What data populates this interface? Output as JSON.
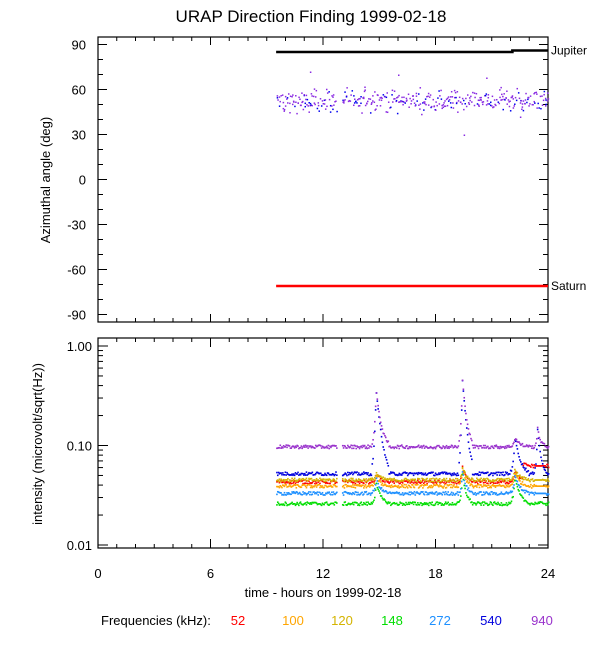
{
  "title": "URAP Direction Finding  1999-02-18",
  "chart_data": [
    {
      "type": "scatter",
      "panel": "direction",
      "ylabel": "Azimuthal angle (deg)",
      "xlim": [
        0,
        24
      ],
      "ylim": [
        -95,
        95
      ],
      "yticks": [
        90,
        60,
        30,
        0,
        -30,
        -60,
        -90
      ],
      "ytick_labels": [
        "90",
        "60",
        "30",
        "0",
        "-30",
        "-60",
        "-90"
      ],
      "reference_lines": [
        {
          "name": "Jupiter",
          "color": "#000000",
          "x": [
            9.5,
            22.1,
            22.1,
            24
          ],
          "y": [
            85,
            85,
            86,
            86
          ]
        },
        {
          "name": "Saturn",
          "color": "#ff0000",
          "x": [
            9.5,
            24
          ],
          "y": [
            -71,
            -71
          ]
        }
      ],
      "scatter": {
        "x_range": [
          9.5,
          24
        ],
        "y_center": 53,
        "y_spread": 8,
        "outliers": [
          {
            "x": 10.2,
            "y": 45
          },
          {
            "x": 11.3,
            "y": 72
          },
          {
            "x": 14.2,
            "y": 62
          },
          {
            "x": 16.0,
            "y": 70
          },
          {
            "x": 19.5,
            "y": 30
          },
          {
            "x": 20.7,
            "y": 68
          },
          {
            "x": 22.5,
            "y": 42
          }
        ],
        "colors": [
          "#8a2be2",
          "#0000ee"
        ]
      }
    },
    {
      "type": "line",
      "panel": "intensity",
      "ylabel": "intensity (microvolt/sqrt(Hz))",
      "xlabel": "time - hours on 1999-02-18",
      "xlim": [
        0,
        24
      ],
      "ylim": [
        0.01,
        1.0
      ],
      "yscale": "log",
      "yticks": [
        1.0,
        0.1,
        0.01
      ],
      "ytick_labels": [
        "1.00",
        "0.10",
        "0.01"
      ],
      "xticks": [
        0,
        6,
        12,
        18,
        24
      ],
      "xtick_labels": [
        "0",
        "6",
        "12",
        "18",
        "24"
      ],
      "data_start": 9.5,
      "gap": [
        12.7,
        13.0
      ],
      "bursts": [
        {
          "x": 14.8,
          "peak": 0.35,
          "width": 0.22
        },
        {
          "x": 19.4,
          "peak": 0.45,
          "width": 0.18
        },
        {
          "x": 22.2,
          "peak": 0.12,
          "width": 0.25
        },
        {
          "x": 23.4,
          "peak": 0.15,
          "width": 0.15
        }
      ],
      "series": [
        {
          "name": "52",
          "color": "#ff0000",
          "values_base": 0.043
        },
        {
          "name": "100",
          "color": "#ffa500",
          "values_base": 0.039
        },
        {
          "name": "120",
          "color": "#d4b400",
          "values_base": 0.045
        },
        {
          "name": "148",
          "color": "#00dd00",
          "values_base": 0.026
        },
        {
          "name": "272",
          "color": "#1e90ff",
          "values_base": 0.033
        },
        {
          "name": "540",
          "color": "#0000dd",
          "values_base": 0.052
        },
        {
          "name": "940",
          "color": "#9932cc",
          "values_base": 0.097
        }
      ]
    }
  ],
  "legend": {
    "label": "Frequencies (kHz):",
    "items": [
      {
        "text": "52",
        "color": "#ff0000"
      },
      {
        "text": "100",
        "color": "#ffa500"
      },
      {
        "text": "120",
        "color": "#d4b400"
      },
      {
        "text": "148",
        "color": "#00dd00"
      },
      {
        "text": "272",
        "color": "#1e90ff"
      },
      {
        "text": "540",
        "color": "#0000dd"
      },
      {
        "text": "940",
        "color": "#9932cc"
      }
    ]
  }
}
